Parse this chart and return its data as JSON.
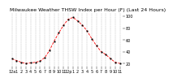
{
  "title": "Milwaukee Weather THSW Index per Hour (F) (Last 24 Hours)",
  "x_labels": [
    "12a",
    "1",
    "2",
    "3",
    "4",
    "5",
    "6",
    "7",
    "8",
    "9",
    "10",
    "11",
    "12p",
    "1",
    "2",
    "3",
    "4",
    "5",
    "6",
    "7",
    "8",
    "9",
    "10",
    "11"
  ],
  "hours": [
    0,
    1,
    2,
    3,
    4,
    5,
    6,
    7,
    8,
    9,
    10,
    11,
    12,
    13,
    14,
    15,
    16,
    17,
    18,
    19,
    20,
    21,
    22,
    23
  ],
  "values": [
    28,
    25,
    22,
    20,
    21,
    22,
    24,
    30,
    42,
    58,
    72,
    85,
    95,
    98,
    92,
    85,
    75,
    62,
    50,
    40,
    35,
    28,
    22,
    20
  ],
  "y_ticks": [
    20,
    40,
    60,
    80,
    100
  ],
  "ylim": [
    15,
    105
  ],
  "line_color": "#ff0000",
  "marker_color": "#000000",
  "bg_color": "#ffffff",
  "plot_bg": "#ffffff",
  "grid_color": "#aaaaaa",
  "title_color": "#000000",
  "title_fontsize": 4.5,
  "tick_fontsize": 3.5
}
